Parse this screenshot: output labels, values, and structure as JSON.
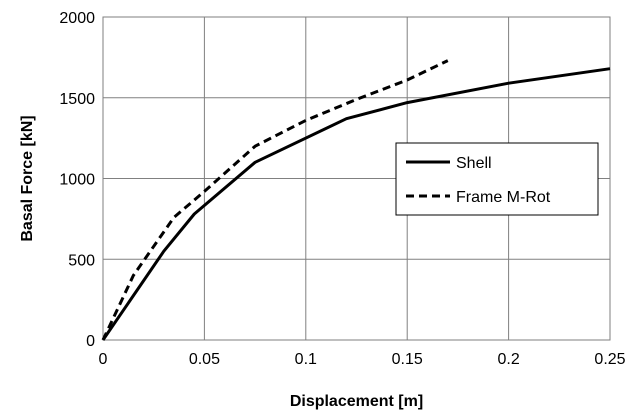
{
  "chart_data": {
    "type": "line",
    "xlabel": "Displacement [m]",
    "ylabel": "Basal Force [kN]",
    "xlim": [
      0,
      0.25
    ],
    "ylim": [
      0,
      2000
    ],
    "x_ticks": [
      0,
      0.05,
      0.1,
      0.15,
      0.2,
      0.25
    ],
    "x_tick_labels": [
      "0",
      "0.05",
      "0.1",
      "0.15",
      "0.2",
      "0.25"
    ],
    "y_ticks": [
      0,
      500,
      1000,
      1500,
      2000
    ],
    "y_tick_labels": [
      "0",
      "500",
      "1000",
      "1500",
      "2000"
    ],
    "grid": true,
    "legend_position": "right",
    "series": [
      {
        "name": "Shell",
        "style": "solid",
        "color": "#000000",
        "x": [
          0,
          0.03,
          0.045,
          0.075,
          0.12,
          0.15,
          0.2,
          0.25
        ],
        "y": [
          0,
          550,
          780,
          1100,
          1370,
          1470,
          1590,
          1680
        ]
      },
      {
        "name": "Frame M-Rot",
        "style": "dashed",
        "color": "#000000",
        "x": [
          0,
          0.015,
          0.035,
          0.05,
          0.075,
          0.1,
          0.125,
          0.15,
          0.17
        ],
        "y": [
          0,
          400,
          760,
          920,
          1200,
          1360,
          1490,
          1610,
          1730
        ]
      }
    ]
  }
}
